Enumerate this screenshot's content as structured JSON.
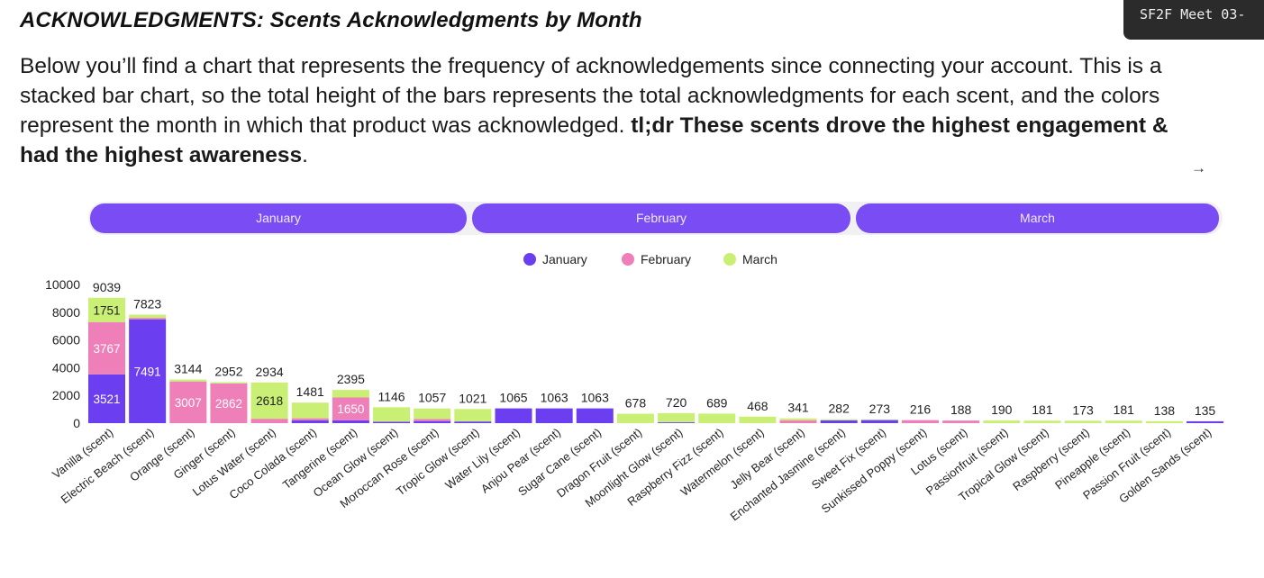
{
  "title": "ACKNOWLEDGMENTS: Scents Acknowledgments by Month",
  "intro": {
    "text": "Below you’ll find a chart that represents the frequency of acknowledgements since connecting your account. This is a stacked bar chart, so the total height of the bars represents the total acknowledgments for each scent, and the colors represent the month in which that product was acknowledged. ",
    "bold": "tl;dr These scents drove the highest engagement & had the highest awareness",
    "end": "."
  },
  "meeting_badge": "SF2F Meet 03-",
  "arrow_icon": "→",
  "month_buttons": [
    "January",
    "February",
    "March"
  ],
  "colors": {
    "January": "#6b3ef0",
    "February": "#ef7fb8",
    "March": "#c9ef74",
    "button": "#7a4cf4"
  },
  "chart_data": {
    "type": "bar",
    "stacked": true,
    "title": "Scents Acknowledgments by Month",
    "xlabel": "",
    "ylabel": "",
    "ylim": [
      0,
      10000
    ],
    "yticks": [
      0,
      2000,
      4000,
      6000,
      8000,
      10000
    ],
    "legend": [
      "January",
      "February",
      "March"
    ],
    "legend_position": "top-center",
    "categories": [
      "Vanilla (scent)",
      "Electric Beach (scent)",
      "Orange (scent)",
      "Ginger (scent)",
      "Lotus Water (scent)",
      "Coco Colada (scent)",
      "Tangerine (scent)",
      "Ocean Glow (scent)",
      "Moroccan Rose (scent)",
      "Tropic Glow (scent)",
      "Water Lily (scent)",
      "Anjou Pear (scent)",
      "Sugar Cane (scent)",
      "Dragon Fruit (scent)",
      "Moonlight Glow (scent)",
      "Raspberry Fizz (scent)",
      "Watermelon (scent)",
      "Jelly Bear (scent)",
      "Enchanted Jasmine (scent)",
      "Sweet Fix (scent)",
      "Sunkissed Poppy (scent)",
      "Lotus (scent)",
      "Passionfruit (scent)",
      "Tropical Glow (scent)",
      "Raspberry (scent)",
      "Pineapple (scent)",
      "Passion Fruit (scent)",
      "Golden Sands (scent)"
    ],
    "series": [
      {
        "name": "January",
        "values": [
          3521,
          7491,
          0,
          0,
          0,
          200,
          200,
          100,
          150,
          120,
          1065,
          1063,
          1063,
          0,
          60,
          0,
          0,
          0,
          200,
          220,
          0,
          0,
          0,
          0,
          0,
          0,
          0,
          135
        ]
      },
      {
        "name": "February",
        "values": [
          3767,
          100,
          3007,
          2862,
          316,
          150,
          1650,
          0,
          150,
          0,
          0,
          0,
          0,
          0,
          0,
          0,
          0,
          200,
          0,
          0,
          216,
          188,
          0,
          0,
          0,
          0,
          0,
          0
        ]
      },
      {
        "name": "March",
        "values": [
          1751,
          232,
          137,
          90,
          2618,
          1131,
          545,
          1046,
          757,
          901,
          0,
          0,
          0,
          678,
          660,
          689,
          468,
          141,
          82,
          53,
          0,
          0,
          190,
          181,
          173,
          181,
          138,
          0
        ]
      }
    ],
    "segment_labels": [
      {
        "category": "Vanilla (scent)",
        "series": "January",
        "text": "3521"
      },
      {
        "category": "Vanilla (scent)",
        "series": "February",
        "text": "3767"
      },
      {
        "category": "Vanilla (scent)",
        "series": "March",
        "text": "1751"
      },
      {
        "category": "Electric Beach (scent)",
        "series": "January",
        "text": "7491"
      },
      {
        "category": "Orange (scent)",
        "series": "February",
        "text": "3007"
      },
      {
        "category": "Ginger (scent)",
        "series": "February",
        "text": "2862"
      },
      {
        "category": "Lotus Water (scent)",
        "series": "March",
        "text": "2618"
      },
      {
        "category": "Tangerine (scent)",
        "series": "February",
        "text": "1650"
      }
    ],
    "totals": [
      9039,
      7823,
      3144,
      2952,
      2934,
      1481,
      2395,
      1146,
      1057,
      1021,
      1065,
      1063,
      1063,
      678,
      720,
      689,
      468,
      341,
      282,
      273,
      216,
      188,
      190,
      181,
      173,
      181,
      138,
      135
    ]
  }
}
